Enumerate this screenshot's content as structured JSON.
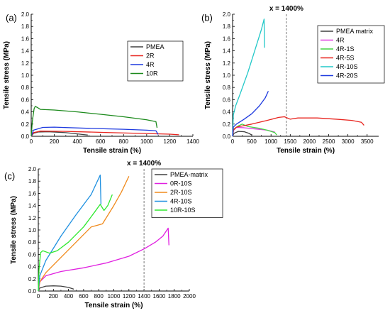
{
  "chart_data": [
    {
      "type": "line",
      "panel_label": "(a)",
      "xlabel": "Tensile strain (%)",
      "ylabel": "Tensile stress (MPa)",
      "xlim": [
        0,
        1400
      ],
      "ylim": [
        0,
        2.0
      ],
      "xticks": [
        0,
        200,
        400,
        600,
        800,
        1000,
        1200,
        1400
      ],
      "yticks": [
        0.0,
        0.2,
        0.4,
        0.6,
        0.8,
        1.0,
        1.2,
        1.4,
        1.6,
        1.8,
        2.0
      ],
      "legend_position": "top-right",
      "series": [
        {
          "name": "PMEA",
          "color": "#404040",
          "points": [
            [
              0,
              0
            ],
            [
              20,
              0.05
            ],
            [
              60,
              0.07
            ],
            [
              150,
              0.075
            ],
            [
              300,
              0.06
            ],
            [
              420,
              0.035
            ],
            [
              490,
              0.02
            ]
          ]
        },
        {
          "name": "2R",
          "color": "#e8251f",
          "points": [
            [
              0,
              0
            ],
            [
              20,
              0.06
            ],
            [
              80,
              0.085
            ],
            [
              300,
              0.08
            ],
            [
              700,
              0.06
            ],
            [
              1000,
              0.045
            ],
            [
              1200,
              0.035
            ],
            [
              1280,
              0.025
            ]
          ]
        },
        {
          "name": "4R",
          "color": "#1e3adf",
          "points": [
            [
              0,
              0
            ],
            [
              20,
              0.1
            ],
            [
              100,
              0.145
            ],
            [
              200,
              0.15
            ],
            [
              500,
              0.13
            ],
            [
              800,
              0.115
            ],
            [
              1000,
              0.1
            ],
            [
              1080,
              0.09
            ],
            [
              1100,
              0.03
            ]
          ]
        },
        {
          "name": "10R",
          "color": "#1c8a1c",
          "points": [
            [
              0,
              0
            ],
            [
              10,
              0.25
            ],
            [
              25,
              0.45
            ],
            [
              35,
              0.49
            ],
            [
              55,
              0.47
            ],
            [
              80,
              0.44
            ],
            [
              200,
              0.43
            ],
            [
              400,
              0.4
            ],
            [
              600,
              0.36
            ],
            [
              800,
              0.32
            ],
            [
              1000,
              0.27
            ],
            [
              1080,
              0.24
            ],
            [
              1090,
              0.14
            ]
          ]
        }
      ]
    },
    {
      "type": "line",
      "panel_label": "(b)",
      "xlabel": "Tensile strain (%)",
      "ylabel": "Tensile stress (MPa)",
      "xlim": [
        0,
        3800
      ],
      "ylim": [
        0,
        2.0
      ],
      "xticks": [
        0,
        500,
        1000,
        1500,
        2000,
        2500,
        3000,
        3500
      ],
      "yticks": [
        0.0,
        0.2,
        0.4,
        0.6,
        0.8,
        1.0,
        1.2,
        1.4,
        1.6,
        1.8,
        2.0
      ],
      "legend_position": "top-right",
      "annotation": {
        "text": "x = 1400%",
        "x": 1400
      },
      "series": [
        {
          "name": "PMEA matrix",
          "color": "#404040",
          "points": [
            [
              0,
              0
            ],
            [
              40,
              0.05
            ],
            [
              150,
              0.08
            ],
            [
              300,
              0.075
            ],
            [
              420,
              0.05
            ],
            [
              500,
              0.02
            ]
          ]
        },
        {
          "name": "4R",
          "color": "#e040e0",
          "points": [
            [
              0,
              0
            ],
            [
              30,
              0.1
            ],
            [
              100,
              0.145
            ],
            [
              300,
              0.14
            ],
            [
              600,
              0.12
            ],
            [
              900,
              0.1
            ],
            [
              1100,
              0.07
            ]
          ]
        },
        {
          "name": "4R-1S",
          "color": "#44d444",
          "points": [
            [
              0,
              0
            ],
            [
              30,
              0.12
            ],
            [
              150,
              0.17
            ],
            [
              250,
              0.2
            ],
            [
              400,
              0.16
            ],
            [
              700,
              0.13
            ],
            [
              900,
              0.1
            ],
            [
              1100,
              0.06
            ],
            [
              1150,
              0.02
            ]
          ]
        },
        {
          "name": "4R-5S",
          "color": "#e8251f",
          "points": [
            [
              0,
              0
            ],
            [
              20,
              0.1
            ],
            [
              100,
              0.15
            ],
            [
              500,
              0.2
            ],
            [
              900,
              0.26
            ],
            [
              1200,
              0.31
            ],
            [
              1350,
              0.32
            ],
            [
              1500,
              0.28
            ],
            [
              1700,
              0.3
            ],
            [
              2200,
              0.3
            ],
            [
              2700,
              0.28
            ],
            [
              3100,
              0.26
            ],
            [
              3350,
              0.23
            ],
            [
              3420,
              0.18
            ]
          ]
        },
        {
          "name": "4R-10S",
          "color": "#22c8c8",
          "points": [
            [
              0,
              0
            ],
            [
              20,
              0.35
            ],
            [
              80,
              0.5
            ],
            [
              200,
              0.7
            ],
            [
              400,
              1.05
            ],
            [
              600,
              1.45
            ],
            [
              750,
              1.75
            ],
            [
              820,
              1.92
            ],
            [
              830,
              1.45
            ]
          ]
        },
        {
          "name": "4R-20S",
          "color": "#1e3adf",
          "points": [
            [
              0,
              0
            ],
            [
              20,
              0.15
            ],
            [
              100,
              0.2
            ],
            [
              300,
              0.28
            ],
            [
              500,
              0.37
            ],
            [
              700,
              0.5
            ],
            [
              850,
              0.63
            ],
            [
              930,
              0.74
            ]
          ]
        }
      ]
    },
    {
      "type": "line",
      "panel_label": "(c)",
      "xlabel": "Tensile strain (%)",
      "ylabel": "Tensile stress (MPa)",
      "xlim": [
        0,
        2000
      ],
      "ylim": [
        0,
        2.0
      ],
      "xticks": [
        0,
        200,
        400,
        600,
        800,
        1000,
        1200,
        1400,
        1600,
        1800,
        2000
      ],
      "yticks": [
        0.0,
        0.2,
        0.4,
        0.6,
        0.8,
        1.0,
        1.2,
        1.4,
        1.6,
        1.8,
        2.0
      ],
      "legend_position": "top-right",
      "annotation": {
        "text": "x = 1400%",
        "x": 1400
      },
      "series": [
        {
          "name": "PMEA-matrix",
          "color": "#404040",
          "points": [
            [
              0,
              0
            ],
            [
              20,
              0.05
            ],
            [
              100,
              0.08
            ],
            [
              200,
              0.085
            ],
            [
              300,
              0.08
            ],
            [
              400,
              0.06
            ],
            [
              470,
              0.03
            ]
          ]
        },
        {
          "name": "0R-10S",
          "color": "#e020e0",
          "points": [
            [
              0,
              0
            ],
            [
              20,
              0.15
            ],
            [
              100,
              0.25
            ],
            [
              300,
              0.32
            ],
            [
              600,
              0.38
            ],
            [
              900,
              0.46
            ],
            [
              1200,
              0.57
            ],
            [
              1400,
              0.69
            ],
            [
              1550,
              0.8
            ],
            [
              1650,
              0.9
            ],
            [
              1720,
              1.03
            ],
            [
              1730,
              0.75
            ]
          ]
        },
        {
          "name": "2R-10S",
          "color": "#f08a1c",
          "points": [
            [
              0,
              0
            ],
            [
              20,
              0.15
            ],
            [
              100,
              0.3
            ],
            [
              300,
              0.55
            ],
            [
              500,
              0.8
            ],
            [
              700,
              1.05
            ],
            [
              850,
              1.1
            ],
            [
              1000,
              1.4
            ],
            [
              1100,
              1.62
            ],
            [
              1200,
              1.88
            ]
          ]
        },
        {
          "name": "4R-10S",
          "color": "#1e90e0",
          "points": [
            [
              0,
              0
            ],
            [
              20,
              0.25
            ],
            [
              100,
              0.5
            ],
            [
              300,
              0.9
            ],
            [
              500,
              1.25
            ],
            [
              700,
              1.58
            ],
            [
              820,
              1.9
            ],
            [
              830,
              1.42
            ]
          ]
        },
        {
          "name": "10R-10S",
          "color": "#2ee82e",
          "points": [
            [
              0,
              0
            ],
            [
              10,
              0.35
            ],
            [
              30,
              0.63
            ],
            [
              60,
              0.66
            ],
            [
              150,
              0.62
            ],
            [
              250,
              0.66
            ],
            [
              400,
              0.8
            ],
            [
              600,
              1.05
            ],
            [
              750,
              1.3
            ],
            [
              820,
              1.42
            ],
            [
              870,
              1.32
            ],
            [
              920,
              1.4
            ],
            [
              980,
              1.58
            ]
          ]
        }
      ]
    }
  ]
}
